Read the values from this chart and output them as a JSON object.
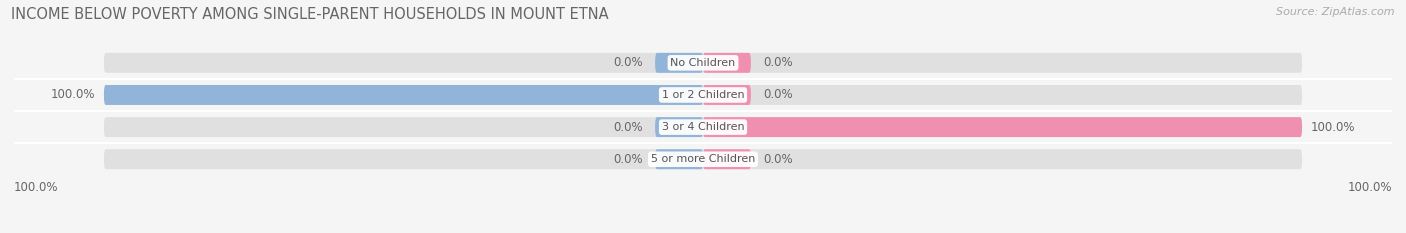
{
  "title": "INCOME BELOW POVERTY AMONG SINGLE-PARENT HOUSEHOLDS IN MOUNT ETNA",
  "source": "Source: ZipAtlas.com",
  "categories": [
    "No Children",
    "1 or 2 Children",
    "3 or 4 Children",
    "5 or more Children"
  ],
  "single_father": [
    0.0,
    100.0,
    0.0,
    0.0
  ],
  "single_mother": [
    0.0,
    0.0,
    100.0,
    0.0
  ],
  "father_color": "#92b4d8",
  "mother_color": "#f090b0",
  "bar_bg_color": "#e0e0e0",
  "bar_bg_color2": "#ebebeb",
  "title_color": "#666666",
  "label_color": "#666666",
  "source_color": "#aaaaaa",
  "bar_height": 0.62,
  "xlim_max": 100,
  "title_fontsize": 10.5,
  "source_fontsize": 8,
  "label_fontsize": 8.5,
  "category_fontsize": 8,
  "legend_fontsize": 8.5,
  "background_color": "#f5f5f5"
}
